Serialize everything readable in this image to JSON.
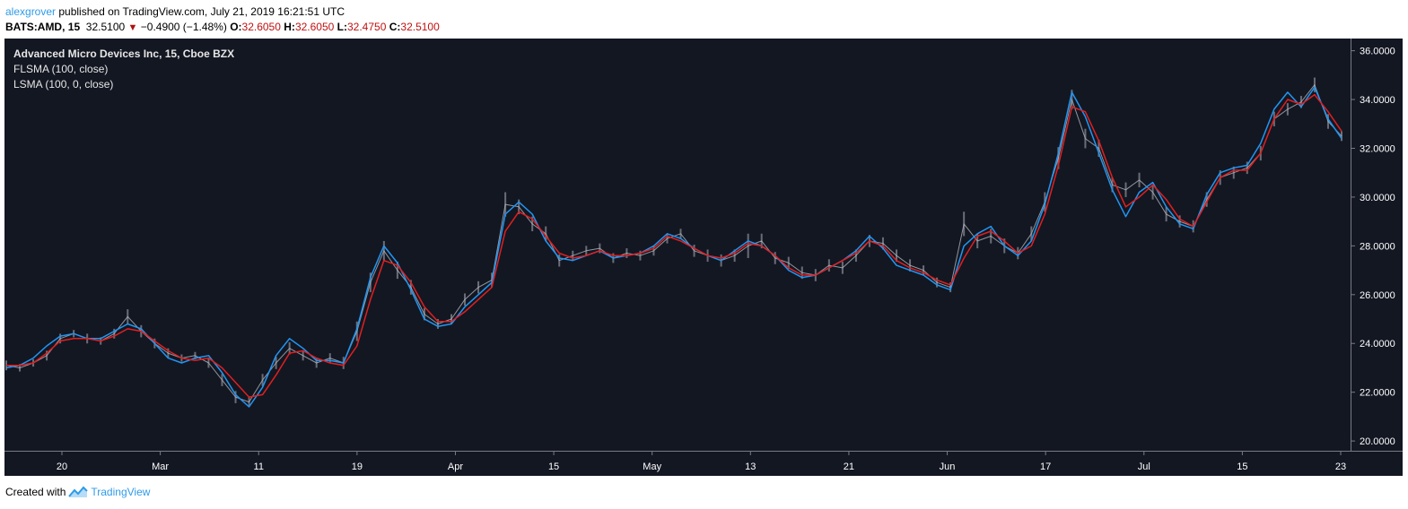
{
  "header": {
    "author": "alexgrover",
    "published_text": " published on TradingView.com, July 21, 2019 16:21:51 UTC"
  },
  "quote": {
    "symbol": "BATS:AMD, 15",
    "last": "32.5100",
    "change_arrow": "▼",
    "change": "−0.4900 (−1.48%)",
    "open_label": "O:",
    "open": "32.6050",
    "high_label": "H:",
    "high": "32.6050",
    "low_label": "L:",
    "low": "32.4750",
    "close_label": "C:",
    "close": "32.5100",
    "change_color": "#c01010"
  },
  "legend": {
    "title": "Advanced Micro Devices Inc, 15, Cboe BZX",
    "line1": "FLSMA (100, close)",
    "line2": "LSMA (100, 0, close)"
  },
  "footer": {
    "created_with": "Created with",
    "brand": "TradingView"
  },
  "colors": {
    "background": "#131722",
    "price": "#b2b5be",
    "flsma": "#2196f3",
    "lsma": "#e21f1f",
    "axis_text": "#ffffff"
  },
  "chart_data": {
    "type": "line",
    "x_ticks": [
      "20",
      "Mar",
      "11",
      "19",
      "Apr",
      "15",
      "May",
      "13",
      "21",
      "Jun",
      "17",
      "Jul",
      "15",
      "23"
    ],
    "y_ticks": [
      "20.0000",
      "22.0000",
      "24.0000",
      "26.0000",
      "28.0000",
      "30.0000",
      "32.0000",
      "34.0000",
      "36.0000"
    ],
    "ylim": [
      19.6,
      36.5
    ],
    "x_count": 100,
    "series": [
      {
        "name": "AMD",
        "color": "#b2b5be",
        "values": [
          23.1,
          23.0,
          23.2,
          23.5,
          24.2,
          24.4,
          24.2,
          24.1,
          24.4,
          25.1,
          24.5,
          24.0,
          23.6,
          23.4,
          23.5,
          23.2,
          22.5,
          21.8,
          21.6,
          22.5,
          23.2,
          23.8,
          23.5,
          23.2,
          23.4,
          23.2,
          24.5,
          26.5,
          27.8,
          27.0,
          26.3,
          25.2,
          24.8,
          25.0,
          25.8,
          26.3,
          26.6,
          29.7,
          29.6,
          28.9,
          28.5,
          27.4,
          27.6,
          27.8,
          27.9,
          27.5,
          27.7,
          27.6,
          27.8,
          28.3,
          28.5,
          27.8,
          27.6,
          27.4,
          27.6,
          28.0,
          28.2,
          27.5,
          27.3,
          26.9,
          26.8,
          27.2,
          27.1,
          27.6,
          28.2,
          28.1,
          27.6,
          27.2,
          27.0,
          26.5,
          26.3,
          28.9,
          28.2,
          28.4,
          28.0,
          27.7,
          28.5,
          29.8,
          31.6,
          34.0,
          32.4,
          32.0,
          30.5,
          30.3,
          30.7,
          30.2,
          29.3,
          29.0,
          28.8,
          29.9,
          30.8,
          31.0,
          31.2,
          31.8,
          33.2,
          33.6,
          33.9,
          34.6,
          33.1,
          32.5
        ],
        "range": [
          0.4,
          0.3,
          0.3,
          0.4,
          0.4,
          0.3,
          0.4,
          0.3,
          0.4,
          0.6,
          0.5,
          0.4,
          0.4,
          0.3,
          0.3,
          0.4,
          0.5,
          0.5,
          0.4,
          0.5,
          0.5,
          0.5,
          0.4,
          0.4,
          0.4,
          0.5,
          0.8,
          0.8,
          0.8,
          0.7,
          0.6,
          0.5,
          0.4,
          0.4,
          0.5,
          0.5,
          0.6,
          1.0,
          0.6,
          0.6,
          0.6,
          0.5,
          0.4,
          0.4,
          0.4,
          0.4,
          0.4,
          0.4,
          0.4,
          0.4,
          0.4,
          0.5,
          0.5,
          0.5,
          0.5,
          1.0,
          0.6,
          0.5,
          0.5,
          0.5,
          0.5,
          0.5,
          0.5,
          0.5,
          0.5,
          0.5,
          0.5,
          0.5,
          0.4,
          0.4,
          0.4,
          1.0,
          0.6,
          0.6,
          0.6,
          0.5,
          0.6,
          0.8,
          0.9,
          0.8,
          0.8,
          0.7,
          0.6,
          0.6,
          0.6,
          0.6,
          0.6,
          0.5,
          0.5,
          0.6,
          0.6,
          0.5,
          0.5,
          0.6,
          0.6,
          0.5,
          0.5,
          0.6,
          0.6,
          0.4
        ]
      },
      {
        "name": "FLSMA (100, close)",
        "color": "#2196f3",
        "values": [
          23.0,
          23.1,
          23.4,
          23.9,
          24.3,
          24.4,
          24.2,
          24.2,
          24.5,
          24.8,
          24.6,
          24.0,
          23.4,
          23.2,
          23.4,
          23.5,
          22.8,
          21.9,
          21.4,
          22.2,
          23.5,
          24.2,
          23.8,
          23.3,
          23.3,
          23.2,
          24.6,
          26.7,
          28.0,
          27.3,
          26.2,
          25.0,
          24.7,
          24.8,
          25.5,
          26.0,
          26.5,
          29.3,
          29.8,
          29.3,
          28.2,
          27.5,
          27.4,
          27.6,
          27.8,
          27.5,
          27.6,
          27.7,
          28.0,
          28.5,
          28.3,
          27.9,
          27.6,
          27.4,
          27.8,
          28.2,
          28.0,
          27.6,
          27.0,
          26.7,
          26.8,
          27.1,
          27.4,
          27.8,
          28.4,
          27.9,
          27.2,
          27.0,
          26.8,
          26.4,
          26.2,
          28.0,
          28.5,
          28.8,
          28.0,
          27.6,
          28.2,
          29.7,
          31.8,
          34.3,
          33.3,
          31.8,
          30.3,
          29.2,
          30.2,
          30.6,
          29.6,
          28.9,
          28.7,
          30.1,
          31.0,
          31.2,
          31.3,
          32.2,
          33.6,
          34.3,
          33.7,
          34.5,
          33.2,
          32.4
        ]
      },
      {
        "name": "LSMA (100, 0, close)",
        "color": "#e21f1f",
        "values": [
          23.1,
          23.1,
          23.2,
          23.6,
          24.1,
          24.2,
          24.2,
          24.1,
          24.3,
          24.6,
          24.5,
          24.1,
          23.7,
          23.4,
          23.3,
          23.4,
          23.0,
          22.4,
          21.8,
          21.9,
          22.7,
          23.6,
          23.7,
          23.4,
          23.2,
          23.1,
          23.9,
          25.8,
          27.4,
          27.2,
          26.5,
          25.5,
          24.9,
          24.9,
          25.3,
          25.8,
          26.3,
          28.6,
          29.4,
          29.1,
          28.4,
          27.7,
          27.5,
          27.6,
          27.8,
          27.6,
          27.6,
          27.7,
          27.9,
          28.4,
          28.2,
          27.9,
          27.6,
          27.5,
          27.7,
          28.1,
          28.0,
          27.6,
          27.1,
          26.8,
          26.8,
          27.1,
          27.4,
          27.7,
          28.2,
          28.0,
          27.4,
          27.1,
          26.9,
          26.6,
          26.4,
          27.5,
          28.4,
          28.6,
          28.2,
          27.7,
          28.0,
          29.3,
          31.3,
          33.7,
          33.5,
          32.3,
          30.8,
          29.6,
          30.0,
          30.5,
          29.9,
          29.1,
          28.8,
          29.8,
          30.8,
          31.1,
          31.1,
          31.8,
          33.2,
          34.0,
          33.8,
          34.2,
          33.5,
          32.7
        ]
      }
    ]
  }
}
